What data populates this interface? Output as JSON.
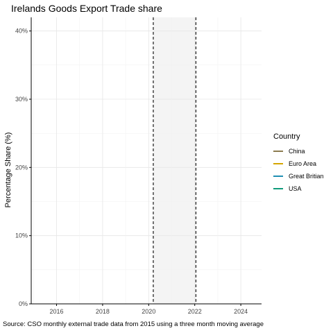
{
  "chart_data": {
    "type": "line",
    "title": "Irelands Goods Export Trade share",
    "ylabel": "Percentage Share (%)",
    "xlabel": "",
    "caption": "Source: CSO monthly external trade data from 2015 using a three month moving average",
    "xlim": [
      2014.9,
      2024.9
    ],
    "ylim": [
      0,
      42
    ],
    "x_ticks": [
      2016,
      2018,
      2020,
      2022,
      2024
    ],
    "x_tick_labels": [
      "2016",
      "2018",
      "2020",
      "2022",
      "2024"
    ],
    "y_ticks": [
      0,
      10,
      20,
      30,
      40
    ],
    "y_tick_labels": [
      "0%",
      "10%",
      "20%",
      "30%",
      "40%"
    ],
    "grid": true,
    "shaded_region": [
      2020.2,
      2022.05
    ],
    "vertical_dashed_lines": [
      2020.2,
      2022.05
    ],
    "legend_title": "Country",
    "legend_position": "right",
    "series": [
      {
        "name": "China",
        "color": "#8c7b4f",
        "values": []
      },
      {
        "name": "Euro Area",
        "color": "#d4a500",
        "values": []
      },
      {
        "name": "Great Britian",
        "color": "#1f8fb3",
        "values": []
      },
      {
        "name": "USA",
        "color": "#0f9a7a",
        "values": []
      }
    ]
  }
}
